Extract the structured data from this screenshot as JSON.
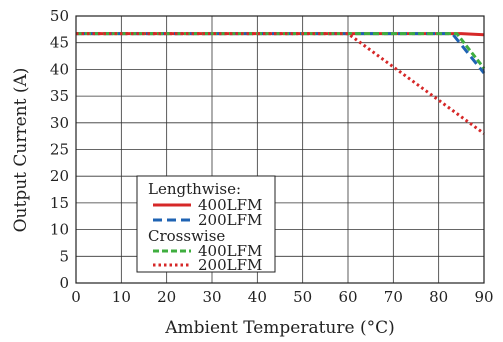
{
  "chart_data": {
    "type": "line",
    "xlabel": "Ambient Temperature (°C)",
    "ylabel": "Output Current (A)",
    "xlim": [
      0,
      90
    ],
    "ylim": [
      0,
      50
    ],
    "x_ticks": [
      "0",
      "10",
      "20",
      "30",
      "40",
      "50",
      "60",
      "70",
      "80",
      "90"
    ],
    "y_ticks": [
      "0",
      "5",
      "10",
      "15",
      "20",
      "25",
      "30",
      "35",
      "40",
      "45",
      "50"
    ],
    "grid": true,
    "legend": {
      "placement": "lower-left",
      "groups": [
        {
          "title": "Lengthwise:",
          "entries": [
            "400LFM",
            "200LFM"
          ]
        },
        {
          "title": "Crosswise",
          "entries": [
            "400LFM",
            "200LFM"
          ]
        }
      ]
    },
    "series": [
      {
        "name": "Lengthwise 400LFM",
        "color": "#d62828",
        "dash": "solid",
        "x": [
          0,
          60,
          85,
          90
        ],
        "y": [
          46.7,
          46.7,
          46.7,
          46.5
        ]
      },
      {
        "name": "Lengthwise 200LFM",
        "color": "#1f63b3",
        "dash": "dashed",
        "x": [
          0,
          60,
          83,
          90
        ],
        "y": [
          46.7,
          46.7,
          46.7,
          39.3
        ]
      },
      {
        "name": "Crosswise 400LFM",
        "color": "#3fae3f",
        "dash": "dashed",
        "x": [
          0,
          60,
          84,
          90
        ],
        "y": [
          46.7,
          46.7,
          46.7,
          40.2
        ]
      },
      {
        "name": "Crosswise 200LFM",
        "color": "#d62828",
        "dash": "dotted",
        "x": [
          0,
          60,
          90
        ],
        "y": [
          46.7,
          46.7,
          28.0
        ]
      }
    ]
  }
}
